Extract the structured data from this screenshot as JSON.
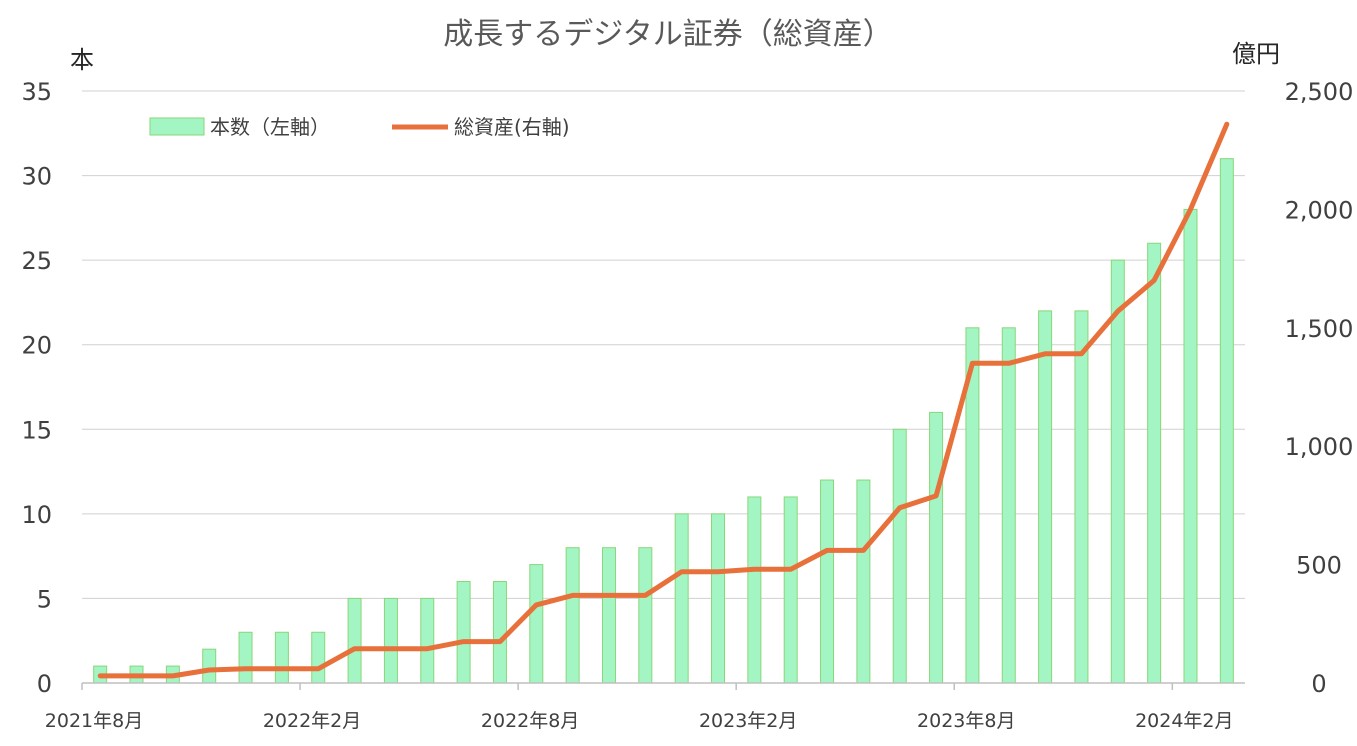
{
  "chart_data": {
    "type": "bar",
    "title": "成長するデジタル証券（総資産）",
    "y_left_unit": "本",
    "y_right_unit": "億円",
    "y_left_range": [
      0,
      35
    ],
    "y_left_ticks": [
      "0",
      "5",
      "10",
      "15",
      "20",
      "25",
      "30",
      "35"
    ],
    "y_right_range": [
      0,
      2500
    ],
    "y_right_ticks": [
      "0",
      "500",
      "1,000",
      "1,500",
      "2,000",
      "2,500"
    ],
    "x_tick_labels": [
      {
        "index": 0,
        "label": "2021年8月"
      },
      {
        "index": 6,
        "label": "2022年2月"
      },
      {
        "index": 12,
        "label": "2022年8月"
      },
      {
        "index": 18,
        "label": "2023年2月"
      },
      {
        "index": 24,
        "label": "2023年8月"
      },
      {
        "index": 30,
        "label": "2024年2月"
      }
    ],
    "grid": true,
    "legend_position": "top-left",
    "series": [
      {
        "name": "本数（左軸）",
        "type": "bar",
        "axis": "left",
        "color": "#a3f5c3",
        "edge_color": "#8ad67a",
        "values": [
          1,
          1,
          1,
          2,
          3,
          3,
          3,
          5,
          5,
          5,
          6,
          6,
          7,
          8,
          8,
          8,
          10,
          10,
          11,
          11,
          12,
          12,
          15,
          16,
          21,
          21,
          22,
          22,
          25,
          26,
          28,
          31
        ]
      },
      {
        "name": "総資産(右軸)",
        "type": "line",
        "axis": "right",
        "color": "#e8703a",
        "values": [
          30,
          30,
          30,
          55,
          60,
          60,
          60,
          145,
          145,
          145,
          175,
          175,
          330,
          370,
          370,
          370,
          470,
          470,
          480,
          480,
          560,
          560,
          740,
          790,
          1350,
          1350,
          1390,
          1390,
          1570,
          1700,
          2000,
          2360
        ]
      }
    ]
  }
}
